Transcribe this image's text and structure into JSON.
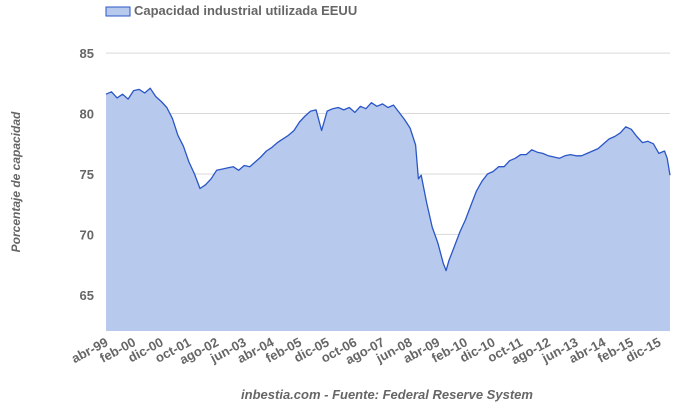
{
  "chart_data": {
    "type": "area",
    "title": "",
    "legend": {
      "label": "Capacidad industrial utilizada EEUU",
      "position": "top-left"
    },
    "ylabel": "Porcentaje de capacidad",
    "xlabel": "",
    "source": "inbestia.com - Fuente: Federal Reserve System",
    "ylim": [
      62,
      87
    ],
    "yticks": [
      65,
      70,
      75,
      80,
      85
    ],
    "x_range": [
      "1999-04",
      "2016-04"
    ],
    "x_tick_labels": [
      "abr-99",
      "feb-00",
      "dic-00",
      "oct-01",
      "ago-02",
      "jun-03",
      "abr-04",
      "feb-05",
      "dic-05",
      "oct-06",
      "ago-07",
      "jun-08",
      "abr-09",
      "feb-10",
      "dic-10",
      "oct-11",
      "ago-12",
      "jun-13",
      "abr-14",
      "feb-15",
      "dic-15"
    ],
    "x_tick_dates": [
      "1999-04",
      "2000-02",
      "2000-12",
      "2001-10",
      "2002-08",
      "2003-06",
      "2004-04",
      "2005-02",
      "2005-12",
      "2006-10",
      "2007-08",
      "2008-06",
      "2009-04",
      "2010-02",
      "2010-12",
      "2011-10",
      "2012-08",
      "2013-06",
      "2014-04",
      "2015-02",
      "2015-12"
    ],
    "grid": true,
    "colors": {
      "fill": "#b8c9ee",
      "line": "#2a56c6",
      "grid": "#d9d9d9"
    },
    "series": [
      {
        "name": "Capacidad industrial utilizada EEUU",
        "points": [
          [
            "1999-04",
            81.6
          ],
          [
            "1999-06",
            81.8
          ],
          [
            "1999-08",
            81.3
          ],
          [
            "1999-10",
            81.6
          ],
          [
            "1999-12",
            81.2
          ],
          [
            "2000-02",
            81.9
          ],
          [
            "2000-04",
            82.0
          ],
          [
            "2000-06",
            81.7
          ],
          [
            "2000-08",
            82.1
          ],
          [
            "2000-10",
            81.4
          ],
          [
            "2000-12",
            81.0
          ],
          [
            "2001-02",
            80.5
          ],
          [
            "2001-04",
            79.6
          ],
          [
            "2001-06",
            78.2
          ],
          [
            "2001-08",
            77.3
          ],
          [
            "2001-10",
            76.0
          ],
          [
            "2001-12",
            75.0
          ],
          [
            "2002-02",
            73.8
          ],
          [
            "2002-04",
            74.1
          ],
          [
            "2002-06",
            74.6
          ],
          [
            "2002-08",
            75.3
          ],
          [
            "2002-10",
            75.4
          ],
          [
            "2002-12",
            75.5
          ],
          [
            "2003-02",
            75.6
          ],
          [
            "2003-04",
            75.3
          ],
          [
            "2003-06",
            75.7
          ],
          [
            "2003-08",
            75.6
          ],
          [
            "2003-10",
            76.0
          ],
          [
            "2003-12",
            76.4
          ],
          [
            "2004-02",
            76.9
          ],
          [
            "2004-04",
            77.2
          ],
          [
            "2004-06",
            77.6
          ],
          [
            "2004-08",
            77.9
          ],
          [
            "2004-10",
            78.2
          ],
          [
            "2004-12",
            78.6
          ],
          [
            "2005-02",
            79.3
          ],
          [
            "2005-04",
            79.8
          ],
          [
            "2005-06",
            80.2
          ],
          [
            "2005-08",
            80.3
          ],
          [
            "2005-10",
            78.6
          ],
          [
            "2005-12",
            80.2
          ],
          [
            "2006-02",
            80.4
          ],
          [
            "2006-04",
            80.5
          ],
          [
            "2006-06",
            80.3
          ],
          [
            "2006-08",
            80.5
          ],
          [
            "2006-10",
            80.1
          ],
          [
            "2006-12",
            80.6
          ],
          [
            "2007-02",
            80.4
          ],
          [
            "2007-04",
            80.9
          ],
          [
            "2007-06",
            80.6
          ],
          [
            "2007-08",
            80.8
          ],
          [
            "2007-10",
            80.5
          ],
          [
            "2007-12",
            80.7
          ],
          [
            "2008-02",
            80.1
          ],
          [
            "2008-04",
            79.5
          ],
          [
            "2008-06",
            78.8
          ],
          [
            "2008-08",
            77.4
          ],
          [
            "2008-09",
            74.6
          ],
          [
            "2008-10",
            74.9
          ],
          [
            "2008-12",
            72.6
          ],
          [
            "2009-02",
            70.6
          ],
          [
            "2009-04",
            69.3
          ],
          [
            "2009-06",
            67.6
          ],
          [
            "2009-07",
            67.0
          ],
          [
            "2009-08",
            67.8
          ],
          [
            "2009-10",
            69.0
          ],
          [
            "2009-12",
            70.2
          ],
          [
            "2010-02",
            71.2
          ],
          [
            "2010-04",
            72.4
          ],
          [
            "2010-06",
            73.6
          ],
          [
            "2010-08",
            74.4
          ],
          [
            "2010-10",
            75.0
          ],
          [
            "2010-12",
            75.2
          ],
          [
            "2011-02",
            75.6
          ],
          [
            "2011-04",
            75.6
          ],
          [
            "2011-06",
            76.1
          ],
          [
            "2011-08",
            76.3
          ],
          [
            "2011-10",
            76.6
          ],
          [
            "2011-12",
            76.6
          ],
          [
            "2012-02",
            77.0
          ],
          [
            "2012-04",
            76.8
          ],
          [
            "2012-06",
            76.7
          ],
          [
            "2012-08",
            76.5
          ],
          [
            "2012-10",
            76.4
          ],
          [
            "2012-12",
            76.3
          ],
          [
            "2013-02",
            76.5
          ],
          [
            "2013-04",
            76.6
          ],
          [
            "2013-06",
            76.5
          ],
          [
            "2013-08",
            76.5
          ],
          [
            "2013-10",
            76.7
          ],
          [
            "2013-12",
            76.9
          ],
          [
            "2014-02",
            77.1
          ],
          [
            "2014-04",
            77.5
          ],
          [
            "2014-06",
            77.9
          ],
          [
            "2014-08",
            78.1
          ],
          [
            "2014-10",
            78.4
          ],
          [
            "2014-12",
            78.9
          ],
          [
            "2015-02",
            78.7
          ],
          [
            "2015-04",
            78.1
          ],
          [
            "2015-06",
            77.6
          ],
          [
            "2015-08",
            77.7
          ],
          [
            "2015-10",
            77.5
          ],
          [
            "2015-12",
            76.7
          ],
          [
            "2016-02",
            76.9
          ],
          [
            "2016-03",
            76.3
          ],
          [
            "2016-04",
            74.9
          ]
        ]
      }
    ]
  }
}
